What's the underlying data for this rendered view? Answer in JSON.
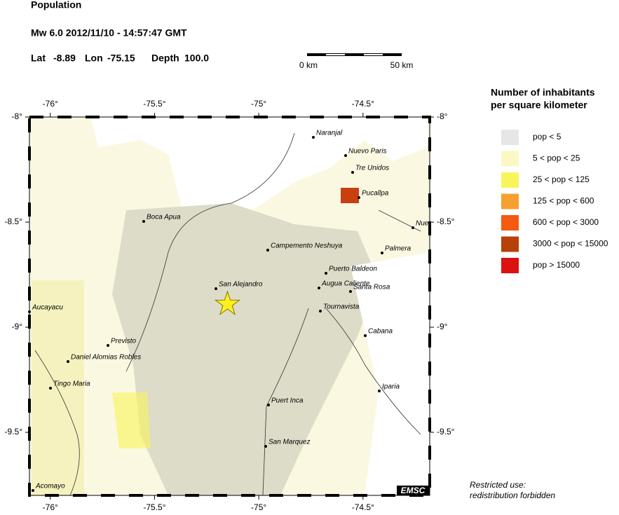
{
  "header": {
    "title": "Population",
    "event_line": "Mw 6.0  2012/11/10 - 14:57:47 GMT",
    "lat": {
      "label": "Lat",
      "value": -8.89
    },
    "lon": {
      "label": "Lon",
      "value": -75.15
    },
    "depth": {
      "label": "Depth",
      "value": "100.0"
    }
  },
  "scale_bar": {
    "start": "0 km",
    "end": "50 km"
  },
  "map": {
    "xlim": [
      -76.1,
      -74.18
    ],
    "ylim": [
      -8,
      -9.8
    ],
    "xticks": [
      {
        "value": -76,
        "label": "-76°"
      },
      {
        "value": -75.5,
        "label": "-75.5°"
      },
      {
        "value": -75,
        "label": "-75°"
      },
      {
        "value": -74.5,
        "label": "-74.5°"
      }
    ],
    "yticks": [
      {
        "value": -8,
        "label": "-8°"
      },
      {
        "value": -8.5,
        "label": "-8.5°"
      },
      {
        "value": -9,
        "label": "-9°"
      },
      {
        "value": -9.5,
        "label": "-9.5°"
      }
    ],
    "cities": [
      "Naranjal",
      "Nuevo Paris",
      "Tre Unidos",
      "Pucallpa",
      "Nue",
      "Boca Apua",
      "Campemento Neshuya",
      "Palmera",
      "Puerto Baldeon",
      "Augua Caliente",
      "Santa Rosa",
      "San Alejandro",
      "Aucayacu",
      "Tournavista",
      "Cabana",
      "Previsto",
      "Daniel Alomias Robles",
      "Tingo Maria",
      "Iparia",
      "Puert Inca",
      "San Marquez",
      "Acomayo"
    ],
    "credit": "EMSC"
  },
  "legend": {
    "title": [
      "Number of inhabitants",
      "per square kilometer"
    ],
    "items": [
      {
        "label": "pop < 5",
        "color": "#e6e6e6"
      },
      {
        "label": "5 < pop < 25",
        "color": "#fbf8c4"
      },
      {
        "label": "25 < pop < 125",
        "color": "#f8f55a"
      },
      {
        "label": "125 < pop < 600",
        "color": "#f6a030"
      },
      {
        "label": "600 < pop < 3000",
        "color": "#f45a10"
      },
      {
        "label": "3000 < pop < 15000",
        "color": "#b8400a"
      },
      {
        "label": "pop > 15000",
        "color": "#dd1010"
      }
    ]
  },
  "footer": [
    "Restricted use:",
    "redistribution forbidden"
  ]
}
